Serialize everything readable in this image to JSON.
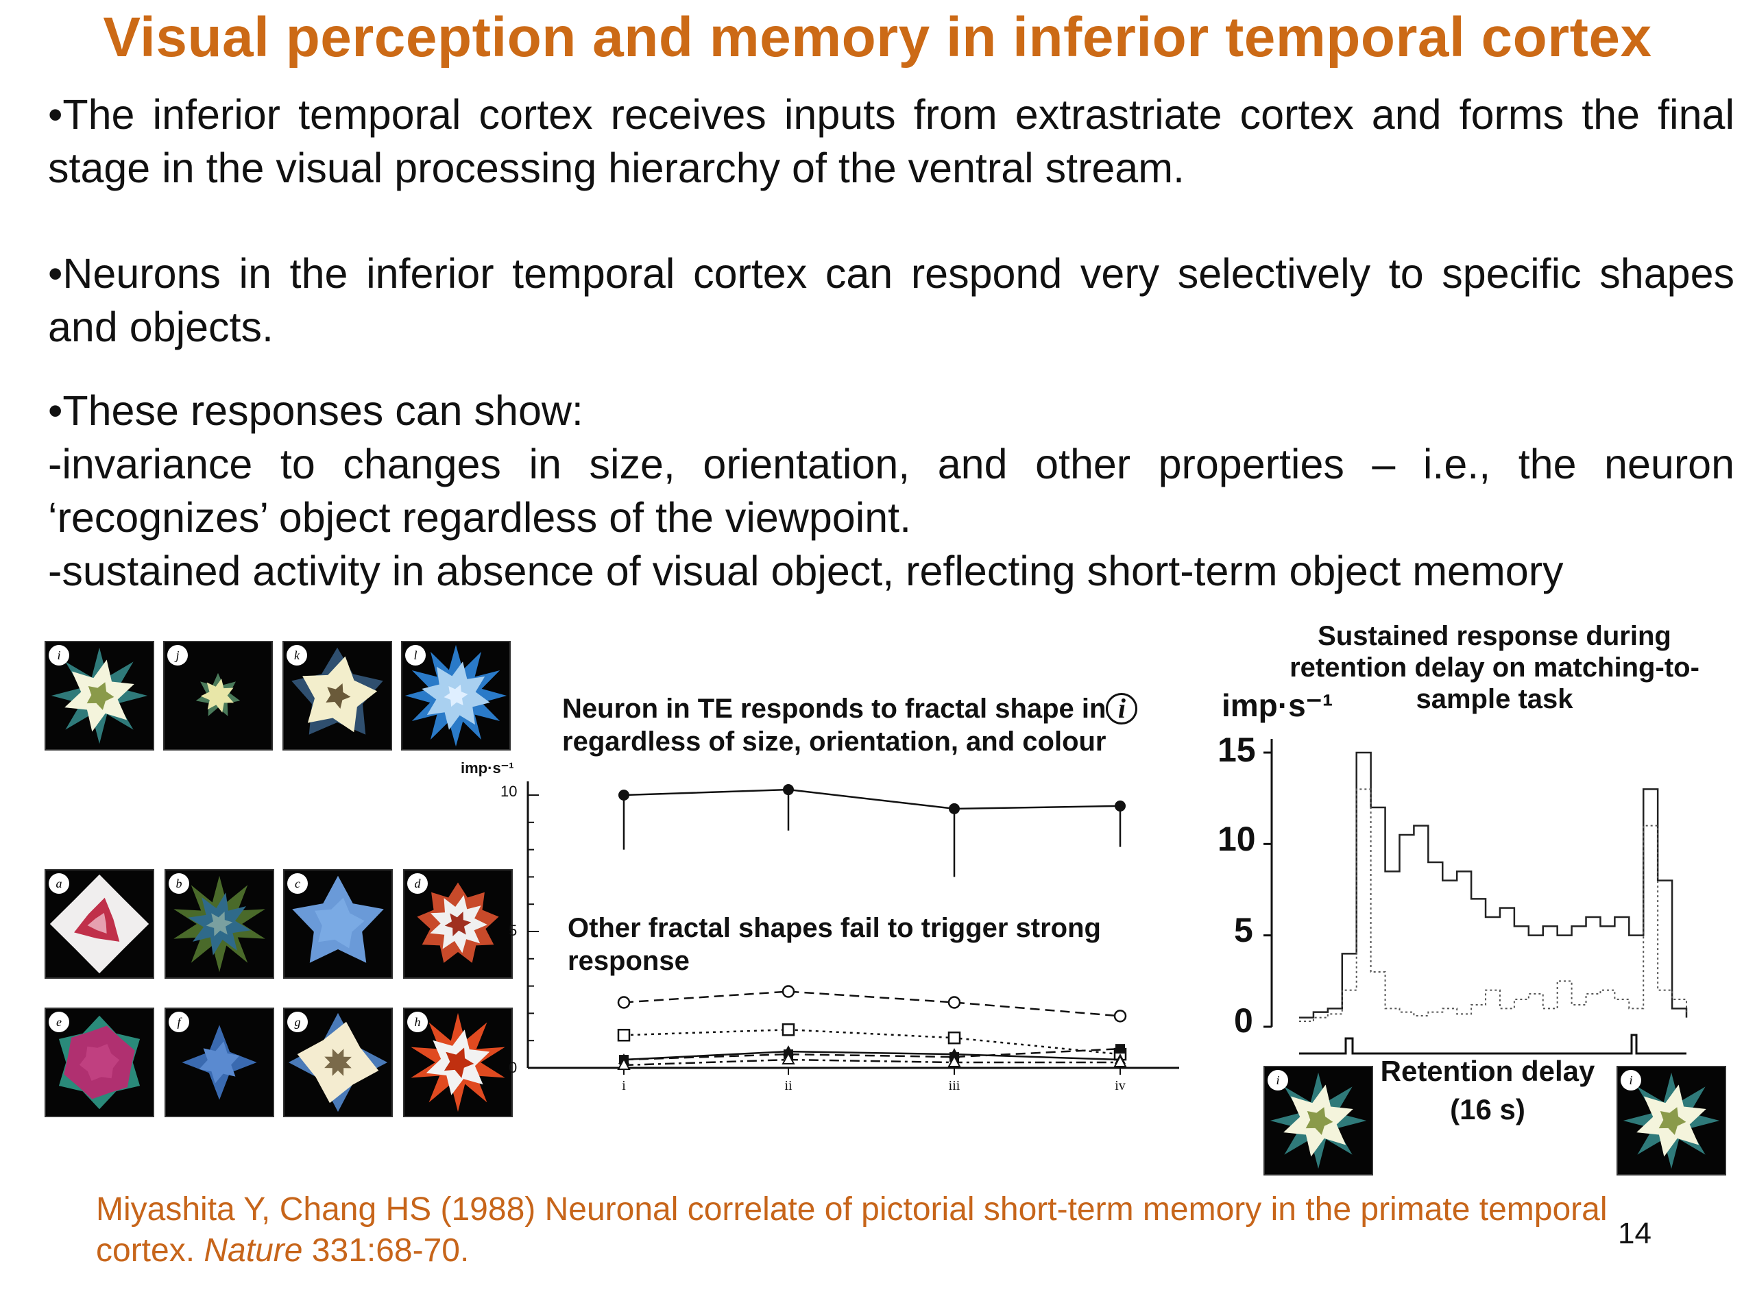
{
  "slide": {
    "title": "Visual perception and memory in inferior temporal cortex",
    "para1": "•The inferior temporal cortex receives inputs from extrastriate cortex and forms the final stage in the visual processing hierarchy of the ventral stream.",
    "para2": "•Neurons in the inferior temporal cortex can respond very selectively to specific shapes and objects.",
    "para3_l1": "•These responses can show:",
    "para3_l2": "-invariance to changes in size, orientation, and other properties – i.e., the neuron ‘recognizes’ object regardless of the viewpoint.",
    "para3_l3": "-sustained activity in absence of visual object, reflecting short-term object memory",
    "ref_pre": "Miyashita Y, Chang HS (1988) Neuronal correlate of pictorial short-term memory in the primate temporal cortex. ",
    "ref_journal": "Nature",
    "ref_post": " 331:68-70.",
    "page_number": "14"
  },
  "stimuli": {
    "top_labels": [
      "i",
      "j",
      "k",
      "l"
    ],
    "bottom_labels": [
      "a",
      "b",
      "c",
      "d",
      "e",
      "f",
      "g",
      "h"
    ]
  },
  "figure_middle": {
    "caption1_l1": "Neuron in TE responds to fractal shape in",
    "caption1_circle": "i",
    "caption1_l2": "regardless of size, orientation, and colour",
    "caption2_l1": "Other fractal shapes fail to trigger strong",
    "caption2_l2": "response",
    "ylabel": "imp·s⁻¹",
    "yticks": [
      "10",
      "5",
      "0"
    ]
  },
  "figure_right": {
    "title_l1": "Sustained response during",
    "title_l2": "retention delay on matching-to-",
    "title_l3": "sample task",
    "ylabel": "imp·s⁻¹",
    "yticks": [
      "15",
      "10",
      "5",
      "0"
    ],
    "delay_l1": "Retention delay",
    "delay_l2": "(16 s)",
    "stim_labels": [
      "i",
      "i"
    ]
  },
  "chart_data": [
    {
      "type": "line",
      "xlabel": "",
      "ylabel": "imp·s⁻¹",
      "categories": [
        "i",
        "ii",
        "iii",
        "iv"
      ],
      "ylim": [
        0,
        10
      ],
      "series": [
        {
          "values": [
            10.0,
            10.2,
            9.5,
            9.6
          ],
          "errors": [
            2.0,
            1.5,
            2.5,
            1.5
          ],
          "marker": "filled-circle",
          "line": "solid"
        },
        {
          "values": [
            2.4,
            2.8,
            2.4,
            1.9
          ],
          "marker": "open-circle",
          "line": "dashed"
        },
        {
          "values": [
            1.2,
            1.4,
            1.1,
            0.5
          ],
          "marker": "open-square",
          "line": "dotted"
        },
        {
          "values": [
            0.3,
            0.5,
            0.4,
            0.7
          ],
          "marker": "filled-square",
          "line": "dashed"
        },
        {
          "values": [
            0.3,
            0.6,
            0.5,
            0.3
          ],
          "marker": "filled-triangle",
          "line": "solid"
        },
        {
          "values": [
            0.1,
            0.3,
            0.2,
            0.2
          ],
          "marker": "open-triangle",
          "line": "dash-dot"
        }
      ]
    },
    {
      "type": "line",
      "ylabel": "imp·s⁻¹",
      "ylim": [
        0,
        15
      ],
      "series": [
        {
          "name": "",
          "values": [
            0.5,
            0.8,
            1.0,
            4.0,
            15.0,
            12.0,
            8.5,
            10.5,
            11.0,
            9.0,
            8.0,
            8.5,
            7.0,
            6.0,
            6.5,
            5.5,
            5.0,
            5.5,
            5.0,
            5.5,
            6.0,
            5.5,
            6.0,
            5.0,
            13.0,
            8.0,
            1.0,
            0.5
          ]
        },
        {
          "name": "",
          "values": [
            0.3,
            0.5,
            0.7,
            2.0,
            13.0,
            3.0,
            1.0,
            0.8,
            0.6,
            0.8,
            1.0,
            0.7,
            1.2,
            2.0,
            1.0,
            1.5,
            1.8,
            1.0,
            2.5,
            1.2,
            1.8,
            2.0,
            1.5,
            1.0,
            11.0,
            2.0,
            1.5,
            0.8
          ]
        }
      ]
    }
  ]
}
